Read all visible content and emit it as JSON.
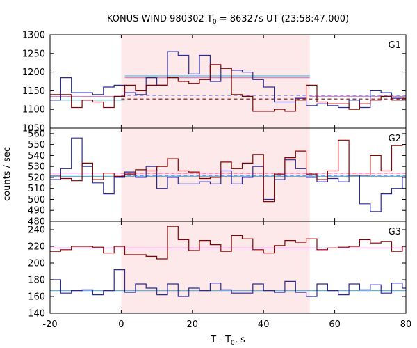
{
  "chart_data": {
    "type": "line",
    "title_prefix": "KONUS-WIND 980302 T",
    "title_sub": "0",
    "title_suffix": " = 86327s UT (23:58:47.000)",
    "xlabel_prefix": "T - T",
    "xlabel_sub": "0",
    "xlabel_suffix": ", s",
    "ylabel": "counts / sec",
    "xlim": [
      -20,
      80
    ],
    "xticks": [
      -20,
      0,
      20,
      40,
      60,
      80
    ],
    "highlight_interval": [
      0,
      53
    ],
    "colors": {
      "blue": "#2a2aa0",
      "red": "#8b0000",
      "cyan": "#56b8e0",
      "pink": "#e080d0",
      "highlight": "#fde8ea"
    },
    "panels": [
      {
        "label": "G1",
        "ylim": [
          1050,
          1300
        ],
        "yticks": [
          1050,
          1100,
          1150,
          1200,
          1250,
          1300
        ],
        "step_edges": [
          -20,
          -17,
          -14,
          -11,
          -8,
          -5,
          -2,
          1,
          4,
          7,
          10,
          13,
          16,
          19,
          22,
          25,
          28,
          31,
          34,
          37,
          40,
          43,
          46,
          49,
          52,
          55,
          58,
          61,
          64,
          67,
          70,
          73,
          76,
          79,
          82
        ],
        "blue_step": [
          1125,
          1185,
          1145,
          1145,
          1140,
          1160,
          1165,
          1145,
          1140,
          1185,
          1165,
          1255,
          1245,
          1195,
          1245,
          1175,
          1210,
          1205,
          1200,
          1180,
          1160,
          1120,
          1120,
          1130,
          1110,
          1115,
          1110,
          1105,
          1125,
          1105,
          1150,
          1145,
          1130,
          1125
        ],
        "red_step": [
          1140,
          1140,
          1105,
          1125,
          1120,
          1105,
          1135,
          1165,
          1150,
          1165,
          1165,
          1185,
          1175,
          1170,
          1180,
          1220,
          1210,
          1140,
          1135,
          1095,
          1095,
          1100,
          1095,
          1125,
          1165,
          1120,
          1115,
          1115,
          1100,
          1115,
          1125,
          1135,
          1125,
          1130
        ],
        "blue_dashed_y": 1138,
        "red_dashed_y": 1128,
        "cyan_segments": [
          {
            "x": [
              -20,
              1
            ],
            "y": 1125
          },
          {
            "x": [
              1,
              53
            ],
            "y": 1190
          },
          {
            "x": [
              53,
              82
            ],
            "y": 1135
          }
        ],
        "pink_segments": [
          {
            "x": [
              -20,
              1
            ],
            "y": 1135
          },
          {
            "x": [
              1,
              53
            ],
            "y": 1185
          },
          {
            "x": [
              53,
              82
            ],
            "y": 1135
          }
        ]
      },
      {
        "label": "G2",
        "ylim": [
          480,
          565
        ],
        "yticks": [
          480,
          490,
          500,
          510,
          520,
          530,
          540,
          550,
          560
        ],
        "step_edges": [
          -20,
          -17,
          -14,
          -11,
          -8,
          -5,
          -2,
          1,
          4,
          7,
          10,
          13,
          16,
          19,
          22,
          25,
          28,
          31,
          34,
          37,
          40,
          43,
          46,
          49,
          52,
          55,
          58,
          61,
          64,
          67,
          70,
          73,
          76,
          79,
          82
        ],
        "blue_step": [
          518,
          528,
          556,
          530,
          515,
          505,
          520,
          525,
          520,
          530,
          510,
          520,
          514,
          514,
          516,
          514,
          526,
          514,
          520,
          530,
          500,
          518,
          536,
          528,
          520,
          516,
          519,
          516,
          522,
          496,
          489,
          505,
          510,
          520
        ],
        "red_step": [
          522,
          519,
          517,
          533,
          518,
          524,
          521,
          523,
          527,
          526,
          530,
          537,
          526,
          525,
          519,
          520,
          534,
          528,
          533,
          541,
          498,
          523,
          538,
          544,
          523,
          518,
          526,
          554,
          522,
          522,
          540,
          526,
          549,
          550
        ],
        "blue_dashed_y": 522,
        "red_dashed_y": 524,
        "cyan_segments": [
          {
            "x": [
              -20,
              82
            ],
            "y": 521
          }
        ],
        "pink_segments": [
          {
            "x": [
              -20,
              82
            ],
            "y": 524
          }
        ]
      },
      {
        "label": "G3",
        "ylim": [
          140,
          250
        ],
        "yticks": [
          140,
          160,
          180,
          200,
          220,
          240
        ],
        "step_edges": [
          -20,
          -17,
          -14,
          -11,
          -8,
          -5,
          -2,
          1,
          4,
          7,
          10,
          13,
          16,
          19,
          22,
          25,
          28,
          31,
          34,
          37,
          40,
          43,
          46,
          49,
          52,
          55,
          58,
          61,
          64,
          67,
          70,
          73,
          76,
          79,
          82
        ],
        "blue_step": [
          180,
          164,
          167,
          168,
          162,
          167,
          192,
          165,
          175,
          170,
          162,
          175,
          160,
          170,
          167,
          176,
          168,
          164,
          164,
          175,
          167,
          165,
          178,
          165,
          160,
          175,
          167,
          162,
          175,
          168,
          174,
          164,
          176,
          170
        ],
        "red_step": [
          214,
          216,
          220,
          220,
          219,
          212,
          220,
          210,
          210,
          208,
          205,
          244,
          228,
          215,
          227,
          222,
          214,
          233,
          229,
          216,
          212,
          221,
          227,
          225,
          229,
          216,
          218,
          219,
          220,
          228,
          224,
          226,
          214,
          220
        ],
        "blue_dashed_y": null,
        "red_dashed_y": null,
        "cyan_segments": [
          {
            "x": [
              -20,
              82
            ],
            "y": 167
          }
        ],
        "pink_segments": [
          {
            "x": [
              -20,
              82
            ],
            "y": 218
          }
        ]
      }
    ]
  }
}
